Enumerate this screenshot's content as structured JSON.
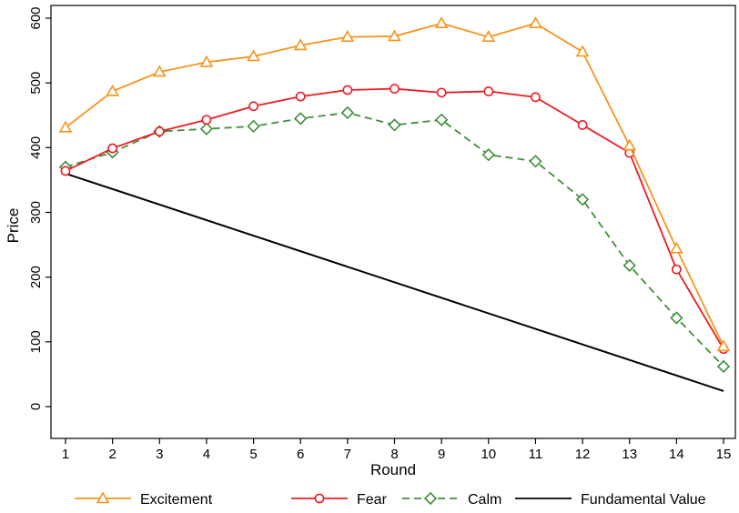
{
  "chart_data": {
    "type": "line",
    "xlabel": "Round",
    "ylabel": "Price",
    "xlim": [
      1,
      15
    ],
    "ylim": [
      0,
      600
    ],
    "x_ticks": [
      1,
      2,
      3,
      4,
      5,
      6,
      7,
      8,
      9,
      10,
      11,
      12,
      13,
      14,
      15
    ],
    "y_ticks": [
      0,
      100,
      200,
      300,
      400,
      500,
      600
    ],
    "grid": false,
    "legend_position": "bottom",
    "x": [
      1,
      2,
      3,
      4,
      5,
      6,
      7,
      8,
      9,
      10,
      11,
      12,
      13,
      14,
      15
    ],
    "series": [
      {
        "name": "Excitement",
        "color": "#f7941d",
        "marker": "triangle",
        "dash": "solid",
        "values": [
          431,
          487,
          517,
          532,
          541,
          558,
          571,
          572,
          592,
          571,
          592,
          548,
          403,
          244,
          93
        ]
      },
      {
        "name": "Fear",
        "color": "#ed1c24",
        "marker": "circle",
        "dash": "solid",
        "values": [
          364,
          399,
          425,
          443,
          464,
          479,
          489,
          491,
          485,
          487,
          478,
          435,
          392,
          212,
          89
        ]
      },
      {
        "name": "Calm",
        "color": "#3f8f3a",
        "marker": "diamond",
        "dash": "dashed",
        "values": [
          370,
          393,
          425,
          429,
          433,
          445,
          454,
          435,
          443,
          389,
          379,
          320,
          218,
          137,
          62
        ]
      },
      {
        "name": "Fundamental Value",
        "color": "#000000",
        "marker": "none",
        "dash": "solid",
        "x": [
          1,
          15
        ],
        "values": [
          360,
          24
        ]
      }
    ]
  }
}
